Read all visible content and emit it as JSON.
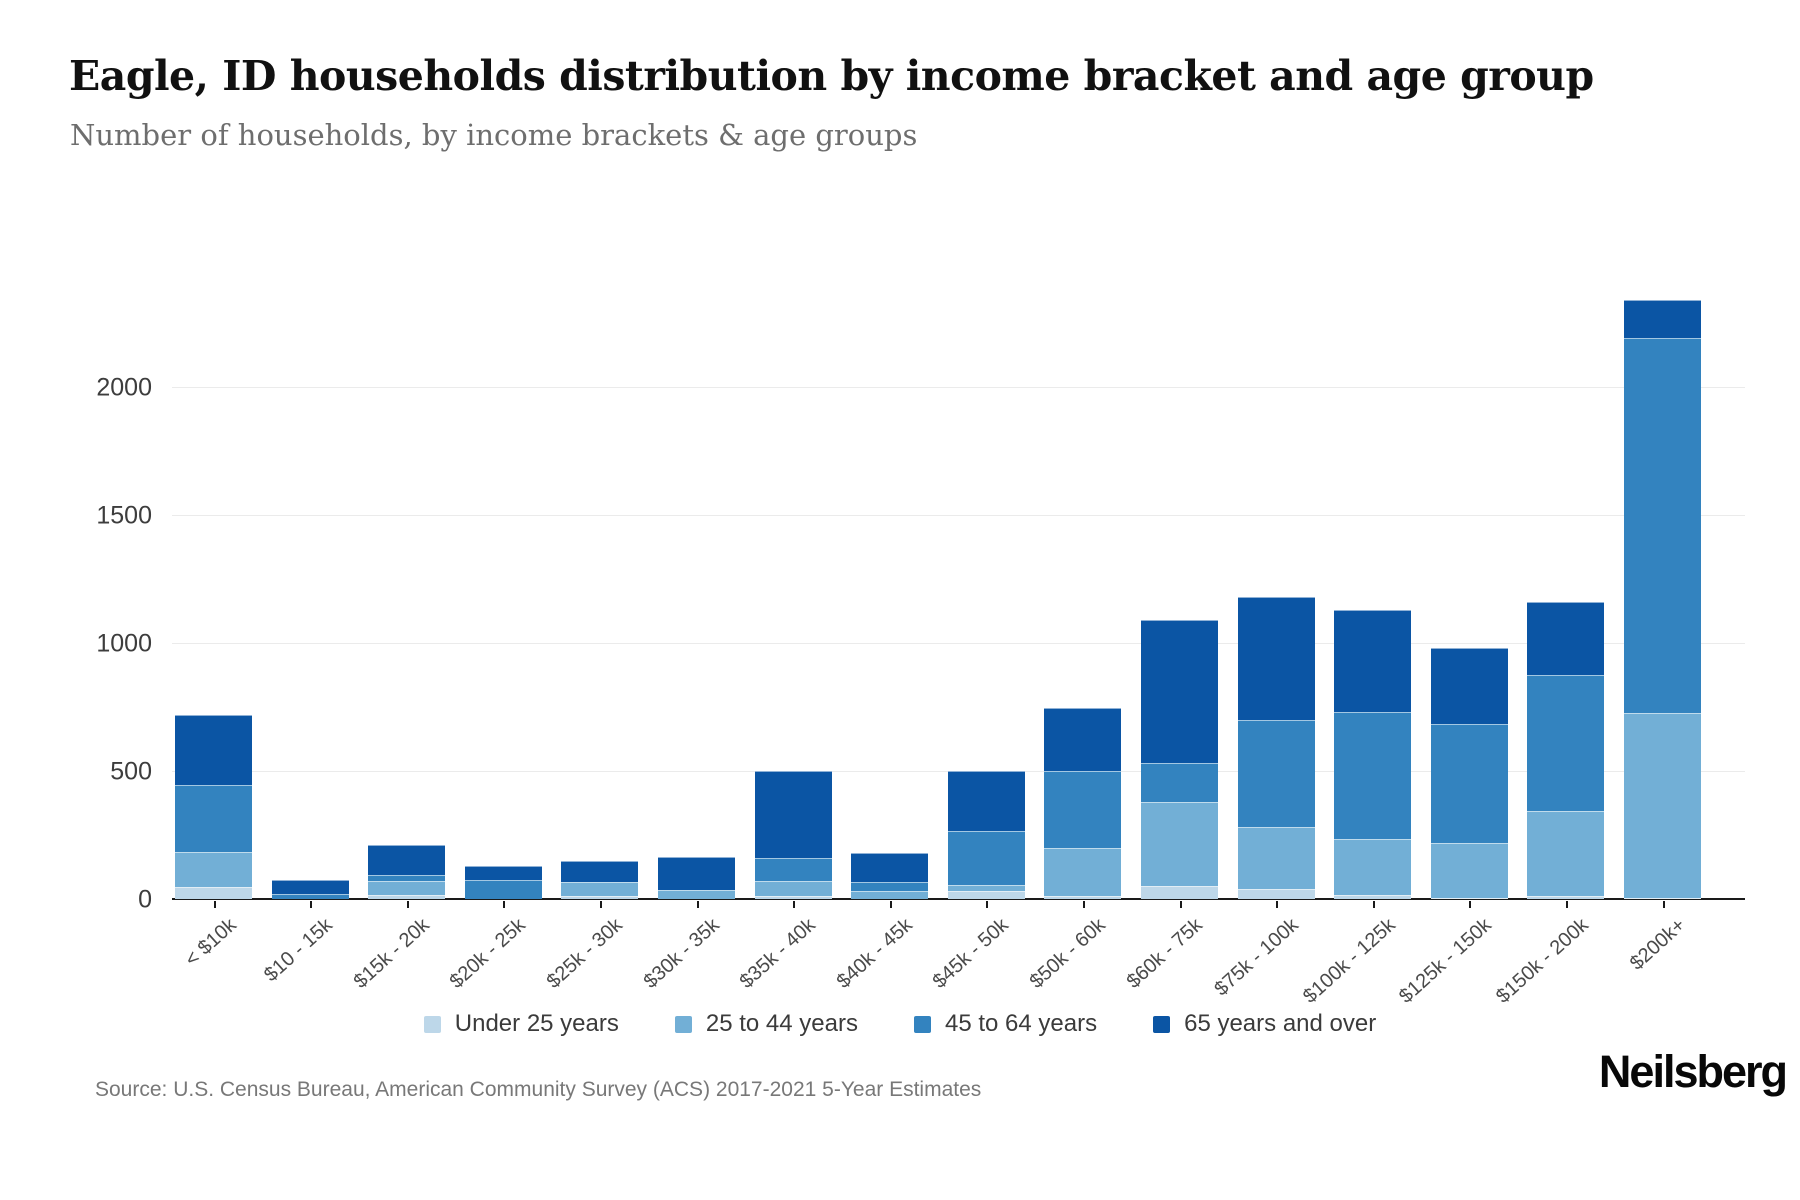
{
  "header": {
    "title": "Eagle, ID households distribution by income bracket and age group",
    "subtitle": "Number of households, by income brackets & age groups"
  },
  "chart_data": {
    "type": "bar",
    "stacked": true,
    "title": "Eagle, ID households distribution by income bracket and age group",
    "xlabel": "",
    "ylabel": "Number of households",
    "categories": [
      "< $10k",
      "$10 - 15k",
      "$15k - 20k",
      "$20k - 25k",
      "$25k - 30k",
      "$30k - 35k",
      "$35k - 40k",
      "$40k - 45k",
      "$45k - 50k",
      "$50k - 60k",
      "$60k - 75k",
      "$75k - 100k",
      "$100k - 125k",
      "$125k - 150k",
      "$150k - 200k",
      "$200k+"
    ],
    "series": [
      {
        "name": "Under 25 years",
        "color": "#bdd7e9",
        "values": [
          45,
          0,
          15,
          0,
          10,
          0,
          10,
          0,
          30,
          10,
          50,
          40,
          15,
          5,
          10,
          5
        ]
      },
      {
        "name": "25 to 44 years",
        "color": "#72afd6",
        "values": [
          140,
          0,
          55,
          0,
          55,
          35,
          60,
          30,
          25,
          190,
          330,
          240,
          220,
          215,
          335,
          720
        ]
      },
      {
        "name": "45 to 64 years",
        "color": "#3383bf",
        "values": [
          260,
          20,
          25,
          75,
          0,
          0,
          90,
          35,
          210,
          300,
          150,
          420,
          495,
          465,
          530,
          1465
        ]
      },
      {
        "name": "65 years and over",
        "color": "#0b55a4",
        "values": [
          275,
          55,
          115,
          55,
          85,
          130,
          340,
          115,
          235,
          245,
          560,
          480,
          400,
          295,
          285,
          150
        ]
      }
    ],
    "totals": [
      720,
      75,
      210,
      130,
      150,
      165,
      500,
      180,
      500,
      745,
      1090,
      1180,
      1130,
      980,
      1160,
      2340
    ],
    "yticks": [
      0,
      500,
      1000,
      1500,
      2000
    ],
    "ylim": [
      0,
      2500
    ],
    "grid": "horizontal",
    "legend_position": "bottom"
  },
  "footer": {
    "source": "Source: U.S. Census Bureau, American Community Survey (ACS) 2017-2021 5-Year Estimates",
    "brand": "Neilsberg"
  }
}
